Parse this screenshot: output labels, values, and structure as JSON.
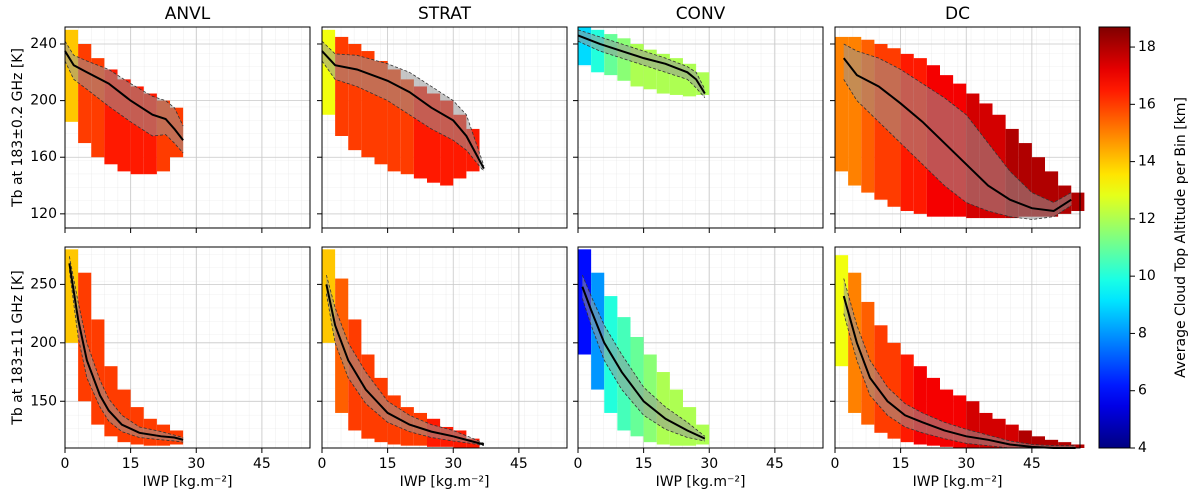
{
  "chart_data": [
    {
      "type": "heatmap",
      "title": "ANVL",
      "ylabel": "Tb at 183±0.2 GHz [K]",
      "xlim": [
        0,
        56
      ],
      "xticks": [
        0,
        15,
        30,
        45
      ],
      "ylim": [
        110,
        252
      ],
      "yticks": [
        120,
        160,
        200,
        240
      ],
      "x_tick_labels": false,
      "y_tick_labels": true,
      "cells": {
        "x": [
          0,
          3,
          6,
          9,
          12,
          15,
          18,
          21,
          24
        ],
        "low": [
          185,
          170,
          160,
          155,
          150,
          148,
          148,
          150,
          160
        ],
        "high": [
          250,
          240,
          230,
          222,
          215,
          210,
          205,
          200,
          195
        ],
        "altitude": [
          14,
          16,
          16,
          16.5,
          16.5,
          16.5,
          16.5,
          16,
          16
        ]
      },
      "mean_line": {
        "x": [
          0,
          2,
          5,
          10,
          15,
          20,
          23,
          25,
          27
        ],
        "values": [
          235,
          225,
          220,
          212,
          200,
          190,
          187,
          180,
          172
        ],
        "lower": [
          228,
          215,
          208,
          196,
          185,
          175,
          176,
          170,
          163
        ],
        "upper": [
          242,
          232,
          228,
          222,
          212,
          203,
          200,
          195,
          182
        ]
      }
    },
    {
      "type": "heatmap",
      "title": "STRAT",
      "xlim": [
        0,
        56
      ],
      "xticks": [
        0,
        15,
        30,
        45
      ],
      "ylim": [
        110,
        252
      ],
      "yticks": [
        120,
        160,
        200,
        240
      ],
      "x_tick_labels": false,
      "y_tick_labels": false,
      "cells": {
        "x": [
          0,
          3,
          6,
          9,
          12,
          15,
          18,
          21,
          24,
          27,
          30,
          33
        ],
        "low": [
          190,
          175,
          165,
          160,
          155,
          150,
          148,
          145,
          142,
          140,
          145,
          150
        ],
        "high": [
          250,
          245,
          240,
          235,
          228,
          222,
          215,
          210,
          205,
          200,
          190,
          180
        ],
        "altitude": [
          13,
          16,
          16,
          16,
          16,
          16,
          16,
          16.5,
          16.5,
          16.5,
          16.5,
          16.5
        ]
      },
      "mean_line": {
        "x": [
          0,
          3,
          8,
          15,
          20,
          25,
          30,
          33,
          37
        ],
        "values": [
          235,
          225,
          222,
          214,
          206,
          195,
          186,
          175,
          152
        ],
        "lower": [
          228,
          215,
          210,
          200,
          190,
          180,
          172,
          165,
          150
        ],
        "upper": [
          242,
          233,
          232,
          226,
          220,
          210,
          200,
          190,
          154
        ]
      }
    },
    {
      "type": "heatmap",
      "title": "CONV",
      "xlim": [
        0,
        56
      ],
      "xticks": [
        0,
        15,
        30,
        45
      ],
      "ylim": [
        110,
        252
      ],
      "yticks": [
        120,
        160,
        200,
        240
      ],
      "x_tick_labels": false,
      "y_tick_labels": false,
      "cells": {
        "x": [
          0,
          3,
          6,
          9,
          12,
          15,
          18,
          21,
          24,
          27
        ],
        "low": [
          225,
          220,
          218,
          214,
          210,
          208,
          205,
          204,
          203,
          204
        ],
        "high": [
          252,
          250,
          247,
          244,
          240,
          236,
          233,
          230,
          226,
          220
        ],
        "altitude": [
          9,
          10,
          11,
          11.5,
          12,
          12,
          12,
          12,
          12,
          12
        ]
      },
      "mean_line": {
        "x": [
          0,
          5,
          10,
          15,
          20,
          25,
          27,
          29
        ],
        "values": [
          246,
          240,
          235,
          230,
          226,
          220,
          215,
          205
        ],
        "lower": [
          242,
          235,
          230,
          225,
          220,
          215,
          209,
          202
        ],
        "upper": [
          250,
          245,
          240,
          235,
          230,
          224,
          220,
          208
        ]
      }
    },
    {
      "type": "heatmap",
      "title": "DC",
      "xlim": [
        0,
        56
      ],
      "xticks": [
        0,
        15,
        30,
        45
      ],
      "ylim": [
        110,
        252
      ],
      "yticks": [
        120,
        160,
        200,
        240
      ],
      "x_tick_labels": false,
      "y_tick_labels": false,
      "cells": {
        "x": [
          0,
          3,
          6,
          9,
          12,
          15,
          18,
          21,
          24,
          27,
          30,
          33,
          36,
          39,
          42,
          45,
          48,
          51,
          54
        ],
        "low": [
          150,
          140,
          135,
          130,
          125,
          122,
          120,
          118,
          118,
          118,
          117,
          117,
          117,
          117,
          118,
          118,
          118,
          120,
          122
        ],
        "high": [
          245,
          245,
          243,
          240,
          237,
          233,
          230,
          225,
          218,
          212,
          205,
          198,
          190,
          180,
          170,
          160,
          150,
          140,
          135
        ],
        "altitude": [
          15,
          15,
          15.5,
          16,
          16,
          16.5,
          16.5,
          17,
          17,
          17,
          17.5,
          17.5,
          17.5,
          18,
          18,
          18,
          18,
          18,
          18
        ]
      },
      "mean_line": {
        "x": [
          2,
          5,
          10,
          15,
          20,
          25,
          30,
          35,
          40,
          45,
          50,
          54
        ],
        "values": [
          230,
          218,
          210,
          198,
          185,
          170,
          155,
          140,
          130,
          124,
          122,
          130
        ],
        "lower": [
          215,
          200,
          185,
          170,
          155,
          140,
          128,
          122,
          118,
          116,
          118,
          126
        ],
        "upper": [
          240,
          235,
          230,
          222,
          212,
          202,
          190,
          170,
          150,
          135,
          128,
          135
        ]
      }
    },
    {
      "type": "heatmap",
      "ylabel": "Tb at 183±11 GHz [K]",
      "xlabel": "IWP [kg.m⁻²]",
      "xlim": [
        0,
        56
      ],
      "xticks": [
        0,
        15,
        30,
        45
      ],
      "ylim": [
        110,
        282
      ],
      "yticks": [
        150,
        200,
        250
      ],
      "x_tick_labels": true,
      "y_tick_labels": true,
      "cells": {
        "x": [
          0,
          3,
          6,
          9,
          12,
          15,
          18,
          21,
          24
        ],
        "low": [
          200,
          150,
          130,
          120,
          115,
          113,
          112,
          112,
          113
        ],
        "high": [
          280,
          260,
          220,
          180,
          160,
          145,
          135,
          130,
          125
        ],
        "altitude": [
          14,
          16,
          16,
          16,
          16,
          16,
          16,
          16,
          16
        ]
      },
      "mean_line": {
        "x": [
          1,
          3,
          5,
          8,
          10,
          13,
          17,
          22,
          25,
          27
        ],
        "values": [
          268,
          220,
          185,
          155,
          142,
          130,
          123,
          120,
          119,
          117
        ],
        "lower": [
          262,
          205,
          170,
          145,
          133,
          124,
          119,
          117,
          116,
          115
        ],
        "upper": [
          274,
          235,
          200,
          168,
          152,
          138,
          128,
          124,
          121,
          119
        ]
      }
    },
    {
      "type": "heatmap",
      "xlabel": "IWP [kg.m⁻²]",
      "xlim": [
        0,
        56
      ],
      "xticks": [
        0,
        15,
        30,
        45
      ],
      "ylim": [
        110,
        282
      ],
      "yticks": [
        150,
        200,
        250
      ],
      "x_tick_labels": true,
      "y_tick_labels": false,
      "cells": {
        "x": [
          0,
          3,
          6,
          9,
          12,
          15,
          18,
          21,
          24,
          27,
          30,
          33
        ],
        "low": [
          200,
          140,
          125,
          118,
          115,
          113,
          112,
          112,
          111,
          111,
          110,
          110
        ],
        "high": [
          280,
          255,
          220,
          190,
          170,
          155,
          145,
          140,
          135,
          128,
          125,
          118
        ],
        "altitude": [
          14,
          15.5,
          16,
          16,
          16,
          16,
          16,
          16,
          16.5,
          16.5,
          16.5,
          16.5
        ]
      },
      "mean_line": {
        "x": [
          1,
          3,
          6,
          10,
          15,
          20,
          25,
          30,
          34,
          37
        ],
        "values": [
          250,
          215,
          185,
          160,
          140,
          130,
          124,
          120,
          116,
          113
        ],
        "lower": [
          242,
          200,
          170,
          148,
          132,
          124,
          119,
          116,
          114,
          112
        ],
        "upper": [
          258,
          230,
          200,
          175,
          150,
          138,
          130,
          125,
          119,
          114
        ]
      }
    },
    {
      "type": "heatmap",
      "xlabel": "IWP [kg.m⁻²]",
      "xlim": [
        0,
        56
      ],
      "xticks": [
        0,
        15,
        30,
        45
      ],
      "ylim": [
        110,
        282
      ],
      "yticks": [
        150,
        200,
        250
      ],
      "x_tick_labels": true,
      "y_tick_labels": false,
      "cells": {
        "x": [
          0,
          3,
          6,
          9,
          12,
          15,
          18,
          21,
          24,
          27
        ],
        "low": [
          190,
          160,
          140,
          125,
          120,
          115,
          113,
          112,
          112,
          113
        ],
        "high": [
          280,
          260,
          240,
          222,
          205,
          190,
          175,
          160,
          145,
          130
        ],
        "altitude": [
          6,
          8,
          10,
          10.5,
          11,
          11.5,
          12,
          12,
          12,
          12
        ]
      },
      "mean_line": {
        "x": [
          1,
          3,
          6,
          10,
          15,
          20,
          25,
          29
        ],
        "values": [
          248,
          228,
          200,
          175,
          150,
          135,
          125,
          118
        ],
        "lower": [
          238,
          215,
          185,
          160,
          138,
          126,
          119,
          116
        ],
        "upper": [
          258,
          240,
          215,
          190,
          162,
          145,
          132,
          120
        ]
      }
    },
    {
      "type": "heatmap",
      "xlabel": "IWP [kg.m⁻²]",
      "xlim": [
        0,
        56
      ],
      "xticks": [
        0,
        15,
        30,
        45
      ],
      "ylim": [
        110,
        282
      ],
      "yticks": [
        150,
        200,
        250
      ],
      "x_tick_labels": true,
      "y_tick_labels": false,
      "cells": {
        "x": [
          0,
          3,
          6,
          9,
          12,
          15,
          18,
          21,
          24,
          27,
          30,
          33,
          36,
          39,
          42,
          45,
          48,
          51,
          54
        ],
        "low": [
          180,
          140,
          130,
          123,
          118,
          115,
          113,
          112,
          111,
          110,
          110,
          110,
          110,
          110,
          110,
          110,
          110,
          110,
          110
        ],
        "high": [
          275,
          260,
          235,
          215,
          200,
          190,
          180,
          170,
          160,
          155,
          150,
          140,
          135,
          130,
          125,
          120,
          117,
          115,
          113
        ],
        "altitude": [
          13,
          15,
          15.5,
          16,
          16,
          16.5,
          17,
          17,
          17,
          17,
          17.5,
          17.5,
          17.5,
          17.5,
          18,
          18,
          18,
          18,
          18
        ]
      },
      "mean_line": {
        "x": [
          2,
          5,
          8,
          12,
          16,
          20,
          25,
          30,
          35,
          40,
          45,
          50,
          55
        ],
        "values": [
          240,
          200,
          170,
          150,
          138,
          132,
          125,
          120,
          117,
          113,
          111,
          110,
          110
        ],
        "lower": [
          225,
          185,
          155,
          138,
          128,
          123,
          118,
          114,
          112,
          110,
          110,
          110,
          110
        ],
        "upper": [
          255,
          215,
          185,
          162,
          148,
          140,
          132,
          126,
          121,
          116,
          113,
          112,
          112
        ]
      }
    }
  ],
  "colorbar": {
    "label": "Average Cloud Top Altitude per Bin [km]",
    "lim": [
      4,
      18.7
    ],
    "ticks": [
      4,
      6,
      8,
      10,
      12,
      14,
      16,
      18
    ]
  }
}
